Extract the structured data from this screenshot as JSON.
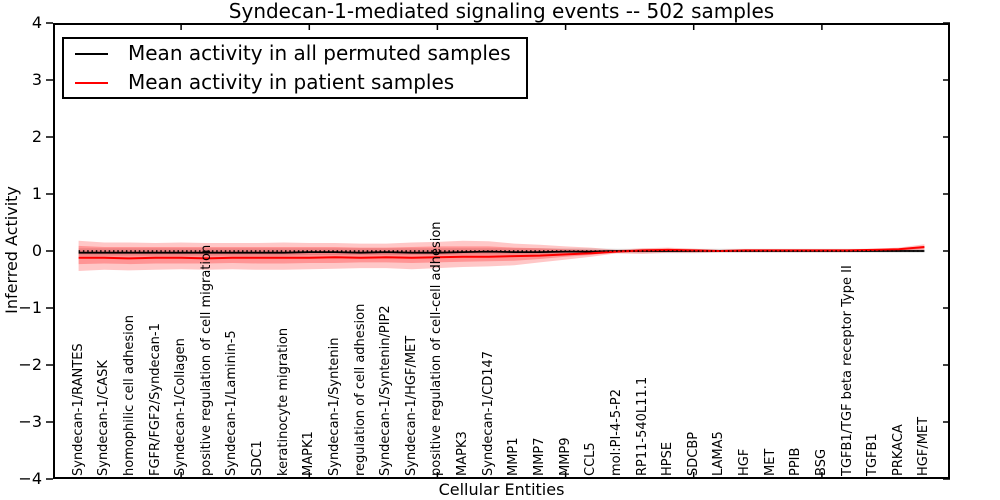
{
  "figure": {
    "title": "Syndecan-1-mediated signaling events -- 502 samples",
    "xlabel": "Cellular Entities",
    "ylabel": "Inferred Activity"
  },
  "legend": {
    "items": [
      {
        "label": "Mean activity in all permuted samples",
        "color": "#000000"
      },
      {
        "label": "Mean activity in patient samples",
        "color": "#ff0000"
      }
    ]
  },
  "chart_data": {
    "type": "line",
    "title": "Syndecan-1-mediated signaling events -- 502 samples",
    "xlabel": "Cellular Entities",
    "ylabel": "Inferred Activity",
    "ylim": [
      -4,
      4
    ],
    "xlim": [
      0,
      35
    ],
    "y_ticks": [
      4,
      3,
      2,
      1,
      0,
      -1,
      -2,
      -3,
      -4
    ],
    "x_ticks": [
      5,
      10,
      15,
      20,
      25,
      30
    ],
    "grid": false,
    "legend_position": "upper left",
    "zero_reference_line": 0,
    "categories": [
      "Syndecan-1/RANTES",
      "Syndecan-1/CASK",
      "homophilic cell adhesion",
      "FGFR/FGF2/Syndecan-1",
      "Syndecan-1/Collagen",
      "positive regulation of cell migration",
      "Syndecan-1/Laminin-5",
      "SDC1",
      "keratinocyte migration",
      "MAPK1",
      "Syndecan-1/Syntenin",
      "regulation of cell adhesion",
      "Syndecan-1/Syntenin/PIP2",
      "Syndecan-1/HGF/MET",
      "positive regulation of cell-cell adhesion",
      "MAPK3",
      "Syndecan-1/CD147",
      "MMP1",
      "MMP7",
      "MMP9",
      "CCL5",
      "mol:PI-4-5-P2",
      "RP11-540L11.1",
      "HPSE",
      "SDCBP",
      "LAMA5",
      "HGF",
      "MET",
      "PPIB",
      "BSG",
      "TGFB1/TGF beta receptor Type II",
      "TGFB1",
      "PRKACA",
      "HGF/MET"
    ],
    "series": [
      {
        "name": "Mean activity in all permuted samples",
        "color": "#000000",
        "style": "solid",
        "width": 1.8,
        "values": [
          -0.03,
          -0.03,
          -0.03,
          -0.03,
          -0.03,
          -0.03,
          -0.03,
          -0.03,
          -0.03,
          -0.02,
          -0.02,
          -0.03,
          -0.02,
          -0.03,
          -0.03,
          -0.02,
          -0.01,
          -0.02,
          -0.02,
          -0.01,
          -0.01,
          0,
          0,
          0,
          0,
          0,
          0,
          0,
          0,
          0,
          0,
          0,
          0,
          0
        ]
      },
      {
        "name": "Mean activity in patient samples",
        "color": "#ff0000",
        "style": "solid",
        "width": 2,
        "values": [
          -0.12,
          -0.12,
          -0.13,
          -0.12,
          -0.12,
          -0.13,
          -0.12,
          -0.12,
          -0.12,
          -0.12,
          -0.11,
          -0.12,
          -0.11,
          -0.12,
          -0.11,
          -0.1,
          -0.1,
          -0.09,
          -0.08,
          -0.06,
          -0.04,
          -0.01,
          0.01,
          0.02,
          0.01,
          0,
          0.01,
          0.01,
          0.01,
          0.01,
          0.01,
          0.02,
          0.03,
          0.07
        ]
      }
    ],
    "bands": [
      {
        "name": "permuted-range",
        "color": "#000000",
        "opacity": 0.12,
        "upper": [
          0.05,
          0.05,
          0.05,
          0.05,
          0.05,
          0.05,
          0.05,
          0.05,
          0.05,
          0.05,
          0.05,
          0.05,
          0.05,
          0.05,
          0.05,
          0.05,
          0.05,
          0.05,
          0.05,
          0.045,
          0.045,
          0.04,
          0.04,
          0.04,
          0.04,
          0.04,
          0.04,
          0.04,
          0.04,
          0.04,
          0.04,
          0.04,
          0.04,
          0.04
        ],
        "lower": [
          -0.08,
          -0.08,
          -0.08,
          -0.08,
          -0.08,
          -0.08,
          -0.08,
          -0.08,
          -0.08,
          -0.07,
          -0.07,
          -0.07,
          -0.07,
          -0.07,
          -0.07,
          -0.06,
          -0.06,
          -0.06,
          -0.06,
          -0.05,
          -0.05,
          -0.04,
          -0.04,
          -0.04,
          -0.04,
          -0.03,
          -0.03,
          -0.03,
          -0.03,
          -0.03,
          -0.03,
          -0.03,
          -0.03,
          -0.03
        ]
      },
      {
        "name": "patient-outer",
        "color": "#ff0000",
        "opacity": 0.22,
        "upper": [
          0.18,
          0.15,
          0.15,
          0.14,
          0.15,
          0.14,
          0.14,
          0.14,
          0.15,
          0.14,
          0.14,
          0.13,
          0.13,
          0.15,
          0.16,
          0.18,
          0.17,
          0.13,
          0.11,
          0.08,
          0.06,
          0.02,
          0.05,
          0.06,
          0.04,
          0.02,
          0.03,
          0.03,
          0.03,
          0.03,
          0.03,
          0.04,
          0.06,
          0.12
        ],
        "lower": [
          -0.35,
          -0.33,
          -0.34,
          -0.33,
          -0.32,
          -0.33,
          -0.32,
          -0.33,
          -0.33,
          -0.32,
          -0.31,
          -0.3,
          -0.3,
          -0.32,
          -0.3,
          -0.28,
          -0.27,
          -0.25,
          -0.2,
          -0.15,
          -0.1,
          -0.04,
          -0.05,
          -0.03,
          -0.03,
          -0.02,
          -0.02,
          -0.02,
          -0.02,
          -0.02,
          -0.02,
          -0.01,
          0,
          0.02
        ]
      },
      {
        "name": "patient-inner",
        "color": "#ff0000",
        "opacity": 0.25,
        "upper": [
          0.09,
          0.07,
          0.07,
          0.07,
          0.07,
          0.07,
          0.07,
          0.07,
          0.07,
          0.07,
          0.07,
          0.06,
          0.06,
          0.07,
          0.08,
          0.08,
          0.08,
          0.06,
          0.05,
          0.03,
          0.02,
          0.01,
          0.03,
          0.04,
          0.02,
          0.01,
          0.02,
          0.02,
          0.02,
          0.02,
          0.02,
          0.03,
          0.04,
          0.09
        ],
        "lower": [
          -0.23,
          -0.22,
          -0.23,
          -0.22,
          -0.22,
          -0.22,
          -0.21,
          -0.22,
          -0.22,
          -0.21,
          -0.21,
          -0.2,
          -0.2,
          -0.21,
          -0.2,
          -0.19,
          -0.18,
          -0.17,
          -0.14,
          -0.1,
          -0.07,
          -0.02,
          -0.02,
          -0.01,
          -0.01,
          -0.01,
          -0.01,
          -0.01,
          -0.01,
          -0.01,
          -0.01,
          0,
          0.01,
          0.04
        ]
      }
    ]
  }
}
